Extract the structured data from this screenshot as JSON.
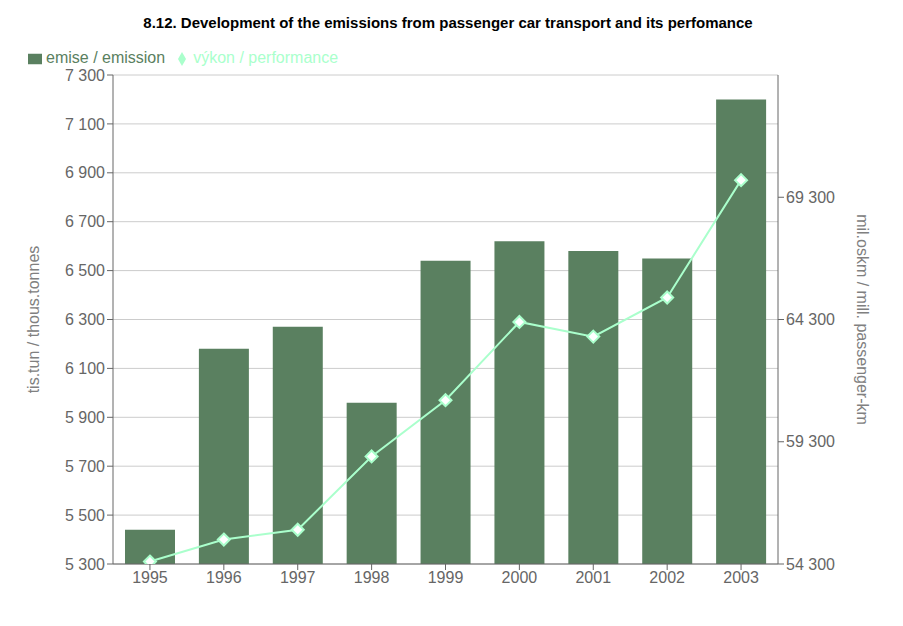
{
  "chart_data": {
    "type": "bar",
    "title": "8.12. Development of the emissions from passenger car transport and its perfomance",
    "categories": [
      "1995",
      "1996",
      "1997",
      "1998",
      "1999",
      "2000",
      "2001",
      "2002",
      "2003"
    ],
    "series": [
      {
        "name": "emise / emission",
        "type": "bar",
        "color": "#5a8060",
        "values": [
          5440,
          6180,
          6270,
          5960,
          6540,
          6620,
          6580,
          6550,
          7200
        ]
      },
      {
        "name": "výkon / performance",
        "type": "line",
        "color": "#aaffcc",
        "marker": "diamond",
        "axis": "y2",
        "values": [
          54400,
          55300,
          55700,
          58700,
          61000,
          64200,
          63600,
          65200,
          70000
        ]
      }
    ],
    "ylabel": "tis.tun / thous.tonnes",
    "y2label": "mil.oskm / mill. passenger-km",
    "ylim": [
      5300,
      7300
    ],
    "yticks": [
      {
        "value": 5300,
        "label": "5 300"
      },
      {
        "value": 5500,
        "label": "5 500"
      },
      {
        "value": 5700,
        "label": "5 700"
      },
      {
        "value": 5900,
        "label": "5 900"
      },
      {
        "value": 6100,
        "label": "6 100"
      },
      {
        "value": 6300,
        "label": "6 300"
      },
      {
        "value": 6500,
        "label": "6 500"
      },
      {
        "value": 6700,
        "label": "6 700"
      },
      {
        "value": 6900,
        "label": "6 900"
      },
      {
        "value": 7100,
        "label": "7 100"
      },
      {
        "value": 7300,
        "label": "7 300"
      }
    ],
    "y2lim": [
      54300,
      74300
    ],
    "y2ticks": [
      {
        "value": 54300,
        "label": "54 300"
      },
      {
        "value": 59300,
        "label": "59 300"
      },
      {
        "value": 64300,
        "label": "64 300"
      },
      {
        "value": 69300,
        "label": "69 300"
      }
    ],
    "grid": true,
    "legend": "upper left"
  }
}
